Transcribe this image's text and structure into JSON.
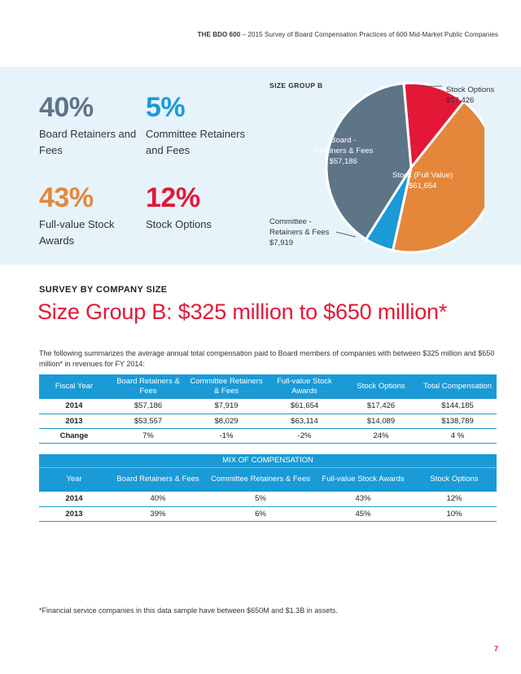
{
  "header": {
    "brand": "THE BDO 600",
    "subtitle": " – 2015 Survey of Board Compensation Practices of 600 Mid-Market Public Companies"
  },
  "stats": [
    {
      "pct": "40%",
      "label": "Board Retainers and Fees",
      "color": "#5e7487"
    },
    {
      "pct": "5%",
      "label": "Committee Retainers and Fees",
      "color": "#1a9ad6"
    },
    {
      "pct": "43%",
      "label": "Full-value Stock Awards",
      "color": "#e4873a"
    },
    {
      "pct": "12%",
      "label": "Stock Options",
      "color": "#e31837"
    }
  ],
  "chart_data": {
    "type": "pie",
    "title": "SIZE GROUP B",
    "slices": [
      {
        "label": "Stock Options",
        "value_text": "$17,426",
        "value": 17426,
        "color": "#e31837"
      },
      {
        "label": "Stock (Full Value)",
        "value_text": "$61,654",
        "value": 61654,
        "color": "#e4873a"
      },
      {
        "label": "Committee - Retainers & Fees",
        "value_text": "$7,919",
        "value": 7919,
        "color": "#1a9ad6"
      },
      {
        "label": "Board - Retainers & Fees",
        "value_text": "$57,186",
        "value": 57186,
        "color": "#5e7487"
      }
    ]
  },
  "pie_labels": {
    "options_name": "Stock Options",
    "options_value": "$17,426",
    "board_1": "Board -",
    "board_2": "Retainers & Fees",
    "board_value": "$57,186",
    "stock_name": "Stock (Full Value)",
    "stock_value": "$61,654",
    "committee_1": "Committee -",
    "committee_2": "Retainers & Fees",
    "committee_value": "$7,919"
  },
  "section": {
    "heading": "SURVEY BY COMPANY SIZE",
    "title": "Size Group B: $325 million to $650 million*",
    "intro": "The following summarizes the average annual total compensation paid to Board members of companies with between $325 million and $650 million* in revenues for FY 2014:"
  },
  "table1": {
    "headers": [
      "Fiscal Year",
      "Board Retainers & Fees",
      "Committee Retainers & Fees",
      "Full-value Stock Awards",
      "Stock Options",
      "Total Compensation"
    ],
    "rows": [
      [
        "2014",
        "$57,186",
        "$7,919",
        "$61,654",
        "$17,426",
        "$144,185"
      ],
      [
        "2013",
        "$53,557",
        "$8,029",
        "$63,114",
        "$14,089",
        "$138,789"
      ],
      [
        "Change",
        "7%",
        "-1%",
        "-2%",
        "24%",
        "4 %"
      ]
    ]
  },
  "table2": {
    "title": "MIX OF COMPENSATION",
    "headers": [
      "Year",
      "Board Retainers & Fees",
      "Committee Retainers & Fees",
      "Full-value Stock Awards",
      "Stock Options"
    ],
    "rows": [
      [
        "2014",
        "40%",
        "5%",
        "43%",
        "12%"
      ],
      [
        "2013",
        "39%",
        "6%",
        "45%",
        "10%"
      ]
    ]
  },
  "footnote": "*Financial service companies in this data sample have between $650M and $1.3B in assets.",
  "page_number": "7"
}
